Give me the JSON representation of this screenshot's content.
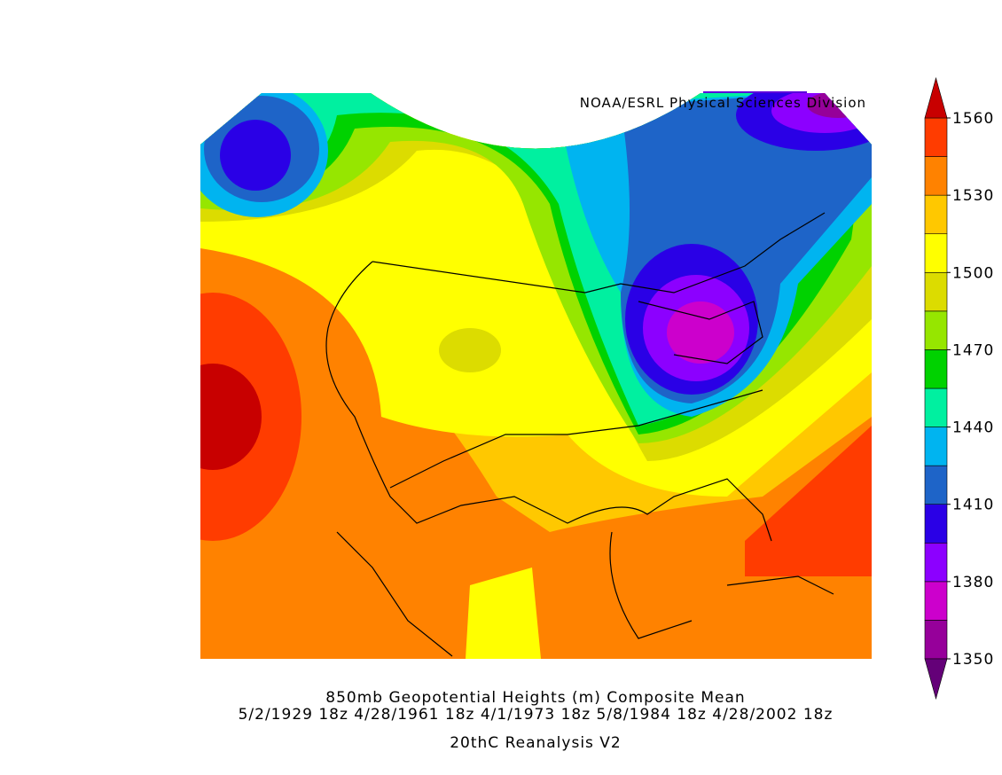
{
  "credit": "NOAA/ESRL Physical Sciences Division",
  "title": "850mb Geopotential Heights (m)   Composite Mean",
  "dates": "5/2/1929 18z 4/28/1961 18z 4/1/1973 18z 5/8/1984 18z 4/28/2002 18z",
  "source": "20thC Reanalysis V2",
  "colorbar": {
    "levels": [
      1350,
      1365,
      1380,
      1395,
      1410,
      1425,
      1440,
      1455,
      1470,
      1485,
      1500,
      1515,
      1530,
      1545,
      1560
    ],
    "ticks": [
      1350,
      1380,
      1410,
      1440,
      1470,
      1500,
      1530,
      1560
    ],
    "colors": [
      "#96009a",
      "#cc00cc",
      "#8c00ff",
      "#2a00e6",
      "#1e64c8",
      "#00b4f0",
      "#00f0a0",
      "#00d200",
      "#96e600",
      "#dcdc00",
      "#ffff00",
      "#ffc800",
      "#ff8200",
      "#ff3c00"
    ],
    "under_color": "#640078",
    "over_color": "#c80000"
  }
}
